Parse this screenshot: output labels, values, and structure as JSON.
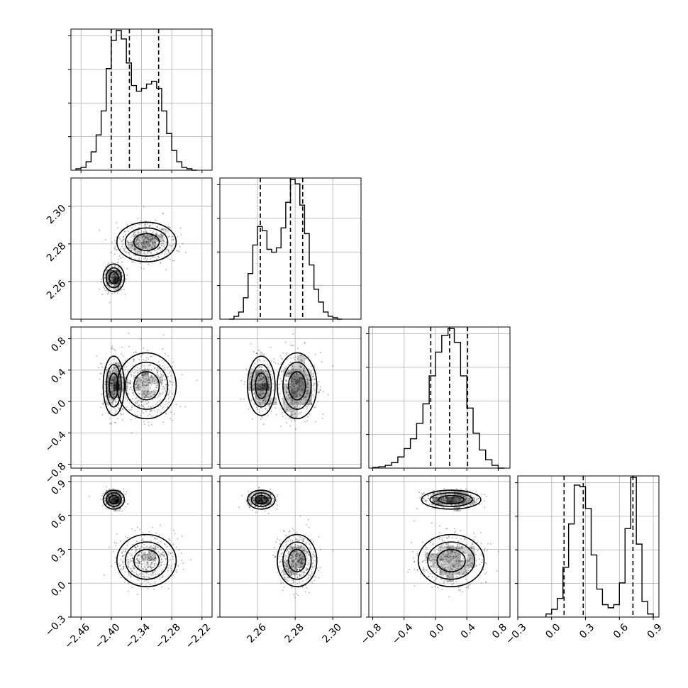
{
  "chart_data": {
    "type": "corner",
    "parameters": [
      {
        "range": [
          -2.48,
          -2.2
        ],
        "ticks": [
          -2.46,
          -2.4,
          -2.34,
          -2.28,
          -2.22
        ],
        "tick_labels": [
          "−2.46",
          "−2.40",
          "−2.34",
          "−2.28",
          "−2.22"
        ],
        "quantiles": [
          -2.4,
          -2.364,
          -2.306
        ],
        "hist_bins": [
          -2.47,
          -2.46,
          -2.45,
          -2.44,
          -2.43,
          -2.42,
          -2.41,
          -2.4,
          -2.39,
          -2.38,
          -2.37,
          -2.36,
          -2.35,
          -2.34,
          -2.33,
          -2.32,
          -2.31,
          -2.3,
          -2.29,
          -2.28,
          -2.27,
          -2.26,
          -2.25,
          -2.24
        ],
        "hist_counts": [
          0.01,
          0.02,
          0.06,
          0.13,
          0.25,
          0.42,
          0.72,
          0.92,
          0.99,
          0.93,
          0.76,
          0.6,
          0.56,
          0.58,
          0.61,
          0.63,
          0.58,
          0.42,
          0.26,
          0.14,
          0.06,
          0.02,
          0.01,
          0.0
        ],
        "modes": [
          {
            "center": -2.39,
            "width": 0.018,
            "weight": 0.55
          },
          {
            "center": -2.32,
            "width": 0.03,
            "weight": 0.45
          }
        ]
      },
      {
        "range": [
          2.24,
          2.315
        ],
        "ticks": [
          2.26,
          2.28,
          2.3
        ],
        "tick_labels": [
          "2.26",
          "2.28",
          "2.30"
        ],
        "quantiles": [
          2.2615,
          2.2775,
          2.284
        ],
        "hist_bins": [
          2.245,
          2.2475,
          2.25,
          2.2525,
          2.255,
          2.2575,
          2.26,
          2.2625,
          2.265,
          2.2675,
          2.27,
          2.2725,
          2.275,
          2.2775,
          2.28,
          2.2825,
          2.285,
          2.2875,
          2.29,
          2.2925,
          2.295,
          2.2975,
          2.3,
          2.3025
        ],
        "hist_counts": [
          0.0,
          0.02,
          0.05,
          0.15,
          0.32,
          0.52,
          0.65,
          0.62,
          0.49,
          0.47,
          0.5,
          0.64,
          0.82,
          0.98,
          0.95,
          0.8,
          0.6,
          0.38,
          0.21,
          0.12,
          0.05,
          0.02,
          0.01,
          0.0
        ],
        "modes": [
          {
            "center": 2.262,
            "width": 0.004,
            "weight": 0.38
          },
          {
            "center": 2.281,
            "width": 0.006,
            "weight": 0.62
          }
        ]
      },
      {
        "range": [
          -0.85,
          0.95
        ],
        "ticks": [
          -0.8,
          -0.4,
          0.0,
          0.4,
          0.8
        ],
        "tick_labels": [
          "−0.8",
          "−0.4",
          "0.0",
          "0.4",
          "0.8"
        ],
        "quantiles": [
          -0.06,
          0.18,
          0.41
        ],
        "hist_bins": [
          -0.8,
          -0.72,
          -0.64,
          -0.56,
          -0.48,
          -0.4,
          -0.32,
          -0.24,
          -0.16,
          -0.08,
          0.0,
          0.08,
          0.16,
          0.24,
          0.32,
          0.4,
          0.48,
          0.56,
          0.64,
          0.72,
          0.8
        ],
        "hist_counts": [
          0.005,
          0.01,
          0.02,
          0.04,
          0.08,
          0.14,
          0.21,
          0.32,
          0.46,
          0.66,
          0.83,
          0.95,
          1.0,
          0.9,
          0.66,
          0.43,
          0.25,
          0.13,
          0.06,
          0.02,
          0.0
        ],
        "modes": [
          {
            "center": 0.2,
            "width": 0.22,
            "weight": 1.0
          }
        ]
      },
      {
        "range": [
          -0.3,
          0.95
        ],
        "ticks": [
          -0.3,
          0.0,
          0.3,
          0.6,
          0.9
        ],
        "tick_labels": [
          "−0.3",
          "0.0",
          "0.3",
          "0.6",
          "0.9"
        ],
        "quantiles": [
          0.11,
          0.28,
          0.72
        ],
        "hist_bins": [
          -0.05,
          0.0,
          0.05,
          0.1,
          0.15,
          0.2,
          0.25,
          0.3,
          0.35,
          0.4,
          0.45,
          0.5,
          0.55,
          0.6,
          0.65,
          0.7,
          0.75,
          0.8,
          0.85
        ],
        "hist_counts": [
          0.02,
          0.05,
          0.12,
          0.32,
          0.6,
          0.85,
          0.84,
          0.7,
          0.4,
          0.18,
          0.08,
          0.06,
          0.08,
          0.22,
          0.57,
          0.9,
          0.47,
          0.1,
          0.02
        ],
        "modes": [
          {
            "center": 0.2,
            "width": 0.12,
            "weight": 0.67
          },
          {
            "center": 0.74,
            "width": 0.05,
            "weight": 0.33
          }
        ]
      }
    ],
    "joint_clusters": [
      {
        "weight": 0.38,
        "center": [
          -2.395,
          2.262,
          0.2,
          0.74
        ],
        "spread": [
          0.01,
          0.0035,
          0.18,
          0.04
        ]
      },
      {
        "weight": 0.62,
        "center": [
          -2.33,
          2.281,
          0.2,
          0.2
        ],
        "spread": [
          0.028,
          0.005,
          0.2,
          0.11
        ]
      }
    ],
    "scatter_points_per_panel": 900,
    "contour_levels": 3,
    "grid": true,
    "legend": "none"
  }
}
